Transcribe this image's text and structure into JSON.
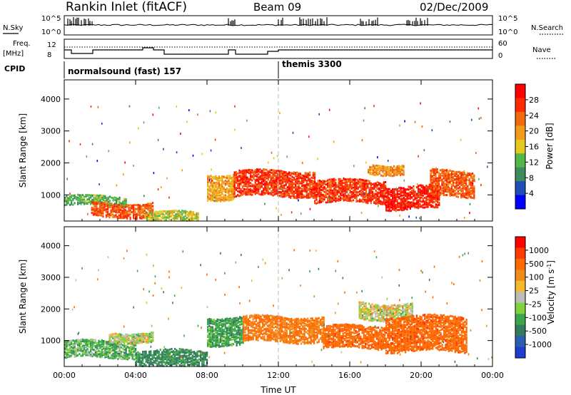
{
  "header": {
    "station": "Rankin Inlet (fitACF)",
    "beam": "Beam 09",
    "date": "02/Dec/2009"
  },
  "status_panel": {
    "nsky_label": "N.Sky",
    "nsearch_label": "N.Search",
    "noise_top_tick": "10^5",
    "noise_bottom_tick": "10^0",
    "freq_label": "Freq.",
    "freq_unit": "[MHz]",
    "freq_ticks": [
      "12",
      "8"
    ],
    "nave_label": "Nave",
    "nave_ticks": [
      "60",
      "0"
    ],
    "cpid_label": "CPID",
    "cpid_segments": [
      {
        "text": "normalsound (fast) 157",
        "start_hour": 0
      },
      {
        "text": "themis 3300",
        "start_hour": 12
      }
    ]
  },
  "colors": {
    "power_scale": [
      "#0000ff",
      "#1f4fb5",
      "#3d8c5a",
      "#52b848",
      "#e6c81e",
      "#f29a1a",
      "#f06a10",
      "#ff2a00",
      "#ff0000"
    ],
    "velocity_scale": [
      "#1c3cd2",
      "#2a5fb0",
      "#347a5e",
      "#3aa64a",
      "#7ed23c",
      "#bdbdb8",
      "#f5b82e",
      "#f08c1a",
      "#ff6a00",
      "#ff3a00",
      "#ff0000"
    ]
  },
  "chart_data": [
    {
      "type": "heatmap",
      "title": "Power",
      "xlabel": "Time UT",
      "ylabel": "Slant Range [km]",
      "xlim_hours": [
        0,
        24
      ],
      "ylim_km": [
        180,
        4600
      ],
      "x_ticks": [
        "00:00",
        "04:00",
        "08:00",
        "12:00",
        "16:00",
        "20:00",
        "00:00"
      ],
      "y_ticks": [
        1000,
        2000,
        3000,
        4000
      ],
      "colorbar": {
        "label": "Power [dB]",
        "ticks": [
          "28",
          "24",
          "20",
          "16",
          "12",
          "8",
          "4"
        ],
        "range": [
          0,
          30
        ]
      },
      "echo_regions": [
        {
          "t0": 0.0,
          "t1": 3.5,
          "r0": 700,
          "r1": 1000,
          "level": 10
        },
        {
          "t0": 1.5,
          "t1": 5.0,
          "r0": 350,
          "r1": 800,
          "level": 24
        },
        {
          "t0": 4.5,
          "t1": 7.5,
          "r0": 200,
          "r1": 500,
          "level": 14
        },
        {
          "t0": 8.0,
          "t1": 9.5,
          "r0": 900,
          "r1": 1700,
          "level": 18
        },
        {
          "t0": 9.5,
          "t1": 14.0,
          "r0": 1000,
          "r1": 1800,
          "level": 26
        },
        {
          "t0": 14.0,
          "t1": 18.0,
          "r0": 800,
          "r1": 1500,
          "level": 26
        },
        {
          "t0": 18.0,
          "t1": 21.0,
          "r0": 600,
          "r1": 1300,
          "level": 28
        },
        {
          "t0": 20.5,
          "t1": 23.0,
          "r0": 1000,
          "r1": 1800,
          "level": 24
        },
        {
          "t0": 17.0,
          "t1": 19.0,
          "r0": 1700,
          "r1": 2000,
          "level": 20
        }
      ]
    },
    {
      "type": "heatmap",
      "title": "Velocity",
      "xlabel": "Time UT",
      "ylabel": "Slant Range [km]",
      "xlim_hours": [
        0,
        24
      ],
      "ylim_km": [
        180,
        4600
      ],
      "x_ticks": [
        "00:00",
        "04:00",
        "08:00",
        "12:00",
        "16:00",
        "20:00",
        "00:00"
      ],
      "y_ticks": [
        1000,
        2000,
        3000,
        4000
      ],
      "colorbar": {
        "label": "Velocity [m s^-1]",
        "ticks": [
          "1000",
          "500",
          "100",
          "25",
          "-25",
          "-100",
          "-500",
          "-1000"
        ]
      },
      "echo_regions": [
        {
          "t0": 0.0,
          "t1": 4.0,
          "r0": 500,
          "r1": 1000,
          "level": 100
        },
        {
          "t0": 2.5,
          "t1": 5.0,
          "r0": 1000,
          "r1": 1300,
          "level": 0
        },
        {
          "t0": 4.0,
          "t1": 8.0,
          "r0": 200,
          "r1": 700,
          "level": 200
        },
        {
          "t0": 8.0,
          "t1": 10.0,
          "r0": 900,
          "r1": 1800,
          "level": 150
        },
        {
          "t0": 10.0,
          "t1": 14.5,
          "r0": 1000,
          "r1": 1800,
          "level": -200
        },
        {
          "t0": 14.5,
          "t1": 18.0,
          "r0": 800,
          "r1": 1500,
          "level": -300
        },
        {
          "t0": 16.5,
          "t1": 19.5,
          "r0": 1700,
          "r1": 2200,
          "level": 0
        },
        {
          "t0": 18.0,
          "t1": 22.5,
          "r0": 700,
          "r1": 1800,
          "level": -300
        }
      ]
    }
  ]
}
